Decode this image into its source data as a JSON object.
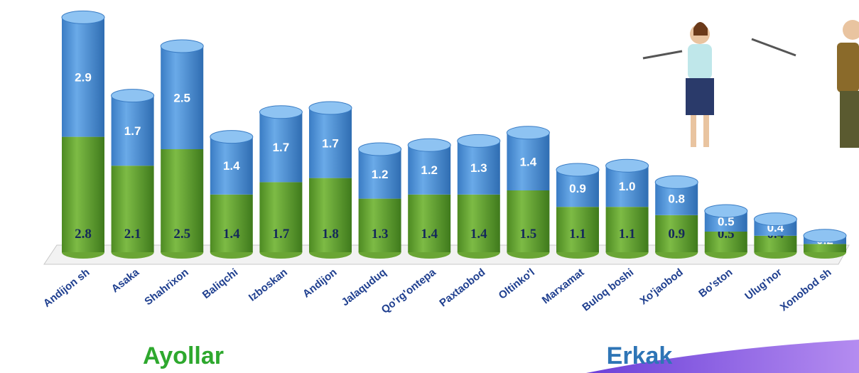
{
  "chart_data": {
    "type": "stacked-bar",
    "categories": [
      "Andijon sh",
      "Asaka",
      "Shahrixon",
      "Baliqchi",
      "Izboskan",
      "Andijon",
      "Jalaquduq",
      "Qo'rg'ontepa",
      "Paxtaobod",
      "Oltinko'l",
      "Marxamat",
      "Buloq boshi",
      "Xo'jaobod",
      "Bo'ston",
      "Ulug'nor",
      "Xonobod sh"
    ],
    "series": [
      {
        "name": "Ayollar",
        "color": "#6aa535",
        "values": [
          2.8,
          2.1,
          2.5,
          1.4,
          1.7,
          1.8,
          1.3,
          1.4,
          1.4,
          1.5,
          1.1,
          1.1,
          0.9,
          0.5,
          0.4,
          0.2
        ],
        "value_labels": [
          "2.8",
          "2.1",
          "2.5",
          "1.4",
          "1.7",
          "1.8",
          "1.3",
          "1.4",
          "1.4",
          "1.5",
          "1.1",
          "1.1",
          "0.9",
          "0.5",
          "0.4",
          "0.2"
        ]
      },
      {
        "name": "Erkak",
        "color": "#4f93d8",
        "values": [
          2.9,
          1.7,
          2.5,
          1.4,
          1.7,
          1.7,
          1.2,
          1.2,
          1.3,
          1.4,
          0.9,
          1.0,
          0.8,
          0.5,
          0.4,
          0.2
        ],
        "value_labels": [
          "2.9",
          "1.7",
          "2.5",
          "1.4",
          "1.7",
          "1.7",
          "1.2",
          "1.2",
          "1.3",
          "1.4",
          "0.9",
          "1.0",
          "0.8",
          "0.5",
          "0.4",
          "0.2"
        ]
      }
    ]
  }
}
